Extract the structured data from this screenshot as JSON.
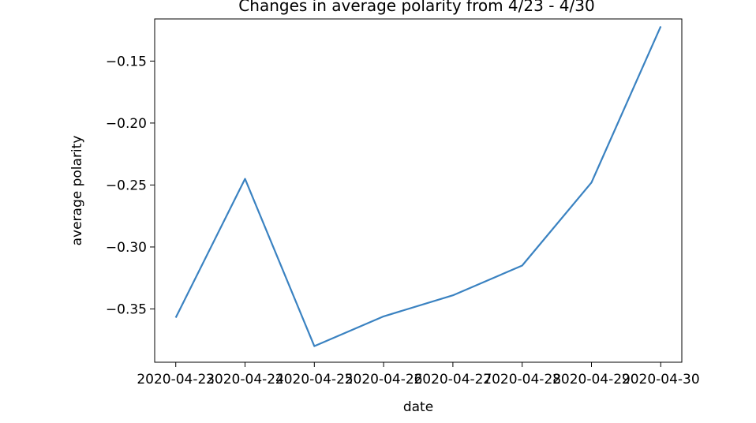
{
  "chart_data": {
    "type": "line",
    "title": "Changes in average polarity from 4/23 - 4/30",
    "xlabel": "date",
    "ylabel": "average polarity",
    "x": [
      "2020-04-23",
      "2020-04-24",
      "2020-04-25",
      "2020-04-26",
      "2020-04-27",
      "2020-04-28",
      "2020-04-29",
      "2020-04-30"
    ],
    "series": [
      {
        "values": [
          -0.357,
          -0.245,
          -0.38,
          -0.356,
          -0.339,
          -0.315,
          -0.248,
          -0.122
        ],
        "color": "#3a82c1"
      }
    ],
    "yticks": [
      -0.35,
      -0.3,
      -0.25,
      -0.2,
      -0.15
    ],
    "ytick_labels": [
      "−0.35",
      "−0.30",
      "−0.25",
      "−0.20",
      "−0.15"
    ],
    "ylim": [
      -0.393,
      -0.116
    ],
    "grid": false,
    "legend": "none"
  }
}
